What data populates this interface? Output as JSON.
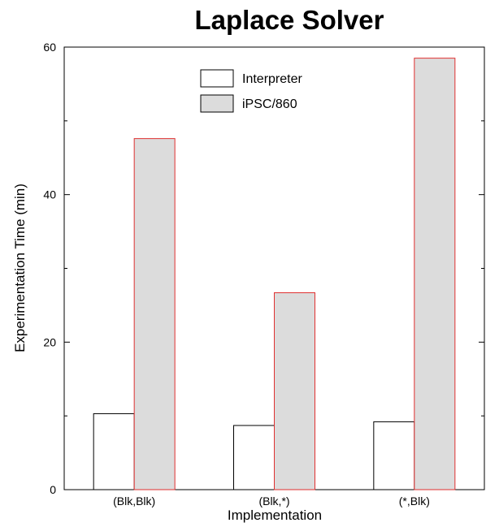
{
  "chart_data": {
    "type": "bar",
    "title": "Laplace Solver",
    "xlabel": "Implementation",
    "ylabel": "Experimentation Time (min)",
    "categories": [
      "(Blk,Blk)",
      "(Blk,*)",
      "(*,Blk)"
    ],
    "series": [
      {
        "name": "Interpreter",
        "values": [
          10.3,
          8.7,
          9.2
        ],
        "fill": "#ffffff",
        "stroke": "#000000"
      },
      {
        "name": "iPSC/860",
        "values": [
          47.6,
          26.7,
          58.5
        ],
        "fill": "#dcdcdc",
        "stroke": "#e03030"
      }
    ],
    "ylim": [
      0,
      60
    ],
    "yticks": [
      0,
      20,
      40,
      60
    ],
    "grid": false,
    "legend_position": "top-center"
  }
}
